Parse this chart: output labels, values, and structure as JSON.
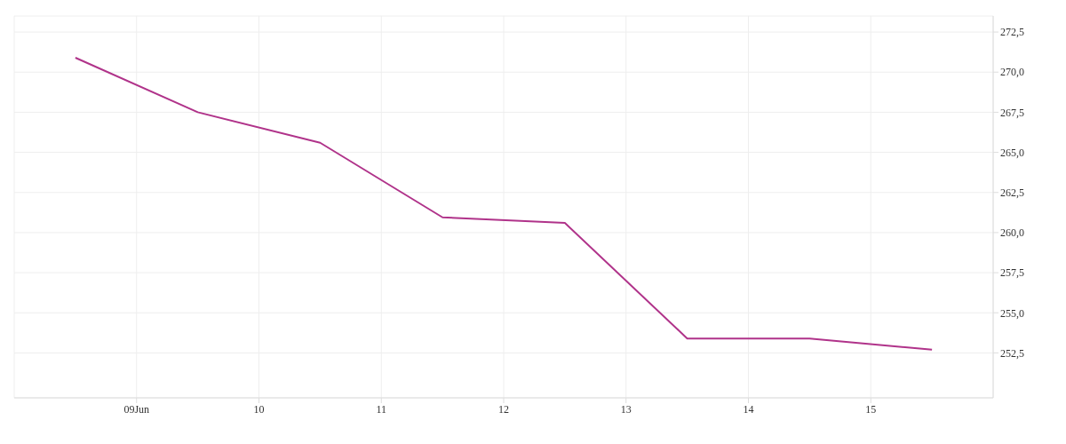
{
  "chart_data": {
    "type": "line",
    "x": [
      8.5,
      9.5,
      10.5,
      11.5,
      12.5,
      13.5,
      14.5,
      15.5
    ],
    "series": [
      {
        "color": "#b0338a",
        "values": [
          270.9,
          267.5,
          265.6,
          260.95,
          260.6,
          253.4,
          253.4,
          252.7
        ]
      }
    ],
    "xlim": [
      8,
      16
    ],
    "xticks": [
      {
        "value": 9,
        "label": "09Jun"
      },
      10,
      11,
      12,
      13,
      14,
      15
    ],
    "ylim": [
      249.7,
      273.5
    ],
    "yticks": [
      {
        "value": 252.5,
        "label": "252,5"
      },
      {
        "value": 255,
        "label": "255,0"
      },
      {
        "value": 257.5,
        "label": "257,5"
      },
      {
        "value": 260,
        "label": "260,0"
      },
      {
        "value": 262.5,
        "label": "262,5"
      },
      {
        "value": 265,
        "label": "265,0"
      },
      {
        "value": 267.5,
        "label": "267,5"
      },
      {
        "value": 270,
        "label": "270,0"
      },
      {
        "value": 272.5,
        "label": "272,5"
      }
    ],
    "grid": true,
    "legend": false,
    "marker": "none",
    "line_style": "solid"
  }
}
